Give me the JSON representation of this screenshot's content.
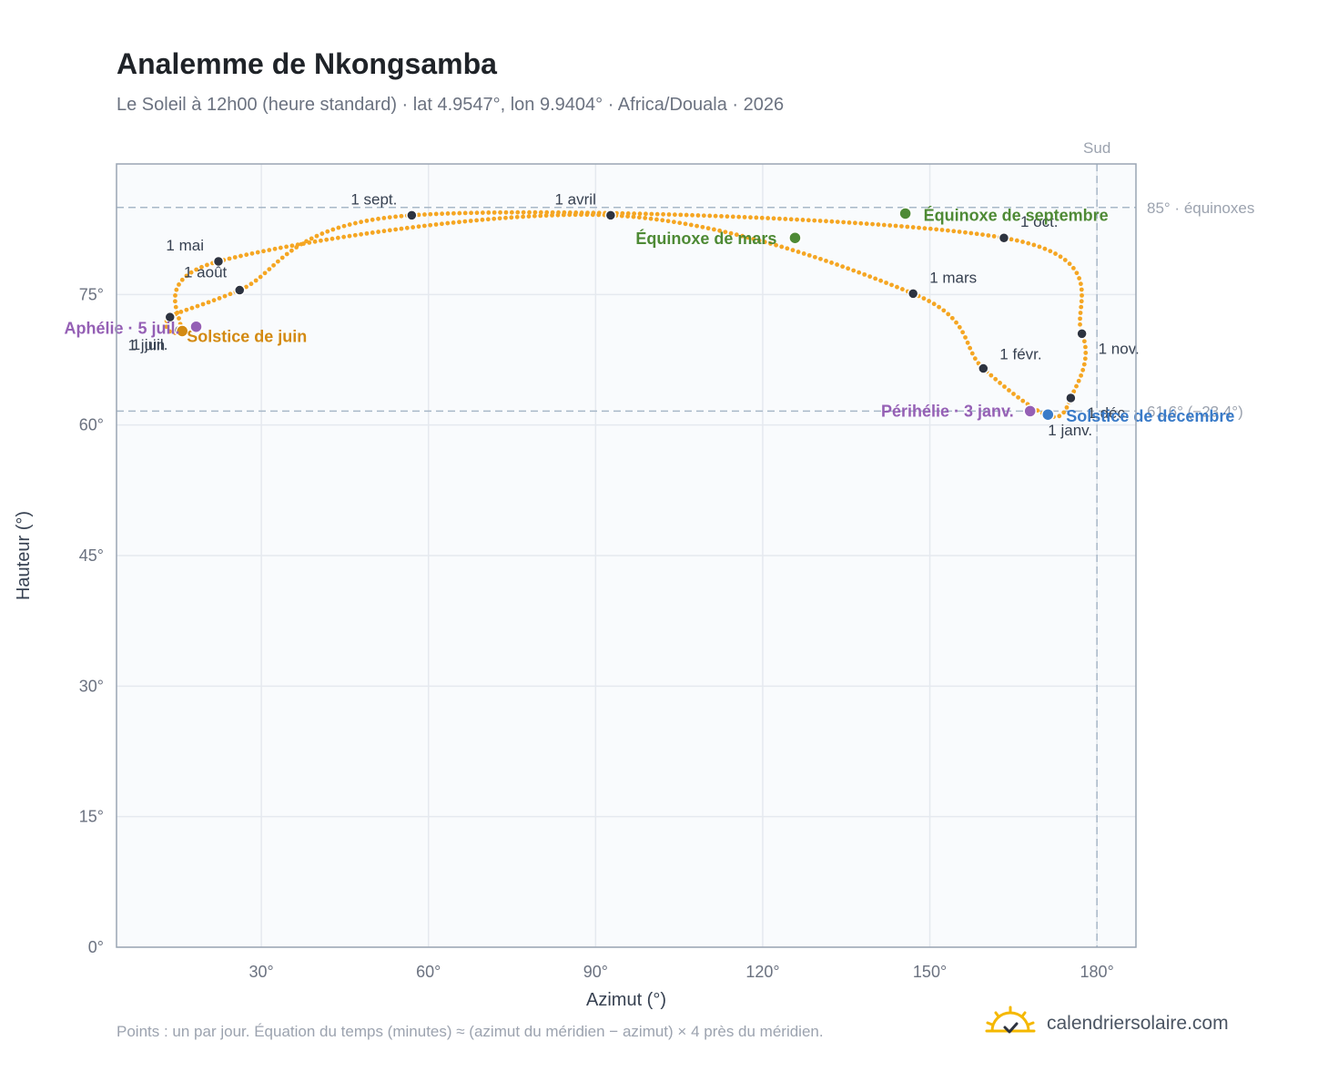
{
  "header": {
    "title": "Analemme de Nkongsamba",
    "subtitle": "Le Soleil à 12h00 (heure standard) · lat 4.9547°, lon 9.9404° · Africa/Douala · 2026"
  },
  "footer": {
    "note": "Points : un par jour. Équation du temps (minutes) ≈ (azimut du méridien − azimut) × 4 près du méridien.",
    "brand": "calendriersolaire.com"
  },
  "colors": {
    "path": "#f5a623",
    "month_marker": "#2d3340",
    "equinox": "#4e8a35",
    "june_solstice": "#d38a12",
    "december_solstice": "#3a7bc8",
    "apsis": "#9560b5",
    "reference_line": "#a8b8c8",
    "plot_bg": "#f9fbfd",
    "grid": "#e5e9ef",
    "frame": "#9aa5b4",
    "logo": "#f5b800"
  },
  "chart_data": {
    "type": "scatter",
    "title": "Analemme de Nkongsamba",
    "xlabel": "Azimut (°)",
    "ylabel": "Hauteur (°)",
    "xlim": [
      4,
      187
    ],
    "ylim": [
      0,
      90
    ],
    "x_ticks": [
      30,
      60,
      90,
      120,
      150,
      180
    ],
    "x_tick_labels": [
      "30°",
      "60°",
      "90°",
      "120°",
      "150°",
      "180°"
    ],
    "y_ticks": [
      0,
      15,
      30,
      45,
      60,
      75
    ],
    "y_tick_labels": [
      "0°",
      "15°",
      "30°",
      "45°",
      "60°",
      "75°"
    ],
    "grid": true,
    "south_line": {
      "azimuth": 180,
      "label": "Sud"
    },
    "reference_lines": [
      {
        "altitude": 85,
        "label": "85° · équinoxes"
      },
      {
        "altitude": 61.6,
        "label": "61.6° (−23.4°)"
      }
    ],
    "path_markers": [
      {
        "label": "1 janv.",
        "az": 171.2,
        "alt": 61.1
      },
      {
        "label": "1 févr.",
        "az": 159.6,
        "alt": 66.5
      },
      {
        "label": "1 mars",
        "az": 147.0,
        "alt": 75.1
      },
      {
        "label": "1 avril",
        "az": 92.7,
        "alt": 84.1
      },
      {
        "label": "1 mai",
        "az": 22.3,
        "alt": 78.8
      },
      {
        "label": "1 juin",
        "az": 15.3,
        "alt": 70.9
      },
      {
        "label": "1 juil.",
        "az": 13.6,
        "alt": 72.4
      },
      {
        "label": "1 août",
        "az": 26.1,
        "alt": 75.5
      },
      {
        "label": "1 sept.",
        "az": 57.0,
        "alt": 84.1
      },
      {
        "label": "1 oct.",
        "az": 163.3,
        "alt": 81.5
      },
      {
        "label": "1 nov.",
        "az": 177.3,
        "alt": 70.5
      },
      {
        "label": "1 déc.",
        "az": 175.3,
        "alt": 63.1
      }
    ],
    "events": [
      {
        "label": "Équinoxe de mars",
        "az": 125.8,
        "alt": 81.5,
        "kind": "equinox"
      },
      {
        "label": "Équinoxe de septembre",
        "az": 145.6,
        "alt": 84.3,
        "kind": "equinox"
      },
      {
        "label": "Solstice de juin",
        "az": 15.8,
        "alt": 70.8,
        "kind": "june_solstice"
      },
      {
        "label": "Solstice de décembre",
        "az": 171.2,
        "alt": 61.2,
        "kind": "december_solstice"
      },
      {
        "label": "Aphélie · 5 juil.",
        "az": 18.3,
        "alt": 71.3,
        "kind": "apsis"
      },
      {
        "label": "Périhélie · 3 janv.",
        "az": 168.0,
        "alt": 61.6,
        "kind": "apsis"
      }
    ]
  }
}
